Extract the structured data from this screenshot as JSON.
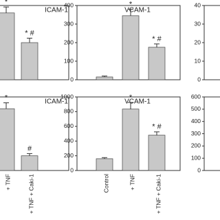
{
  "chart_data": [
    {
      "type": "bar",
      "title": "ICAM-1",
      "values": [
        90,
        50
      ],
      "errors": [
        8,
        6
      ],
      "annotations": [
        "*",
        "* #"
      ],
      "color": "#c8c8c8",
      "ylim": [
        0,
        100
      ]
    },
    {
      "type": "bar",
      "title": "VCAM-1",
      "values": [
        15,
        345,
        175
      ],
      "errors": [
        5,
        35,
        18
      ],
      "annotations": [
        null,
        "*",
        "* #"
      ],
      "color": "#c8c8c8",
      "ylim": [
        0,
        400
      ],
      "yticks": [
        0,
        100,
        200,
        300,
        400
      ]
    },
    {
      "type": "bar",
      "ylim": [
        0,
        40
      ],
      "yticks": [
        0,
        10,
        20,
        30,
        40
      ]
    },
    {
      "type": "bar",
      "title": "ICAM-1",
      "categories": [
        "+ TNF",
        "+ TNF + Caki-1"
      ],
      "values": [
        84,
        20
      ],
      "errors": [
        8,
        3
      ],
      "annotations": [
        "*",
        "#"
      ],
      "color": "#c8c8c8",
      "ylim": [
        0,
        100
      ]
    },
    {
      "type": "bar",
      "title": "VCAM-1",
      "categories": [
        "Control",
        "+ TNF",
        "+ TNF + Caki-1"
      ],
      "values": [
        160,
        835,
        480
      ],
      "errors": [
        15,
        90,
        45
      ],
      "annotations": [
        null,
        "*",
        "* #"
      ],
      "color": "#c8c8c8",
      "ylim": [
        0,
        1000
      ],
      "yticks": [
        0,
        200,
        400,
        600,
        800,
        1000
      ]
    },
    {
      "type": "bar",
      "ylim": [
        0,
        600
      ],
      "yticks": [
        0,
        100,
        200,
        300,
        400,
        500,
        600
      ]
    }
  ]
}
